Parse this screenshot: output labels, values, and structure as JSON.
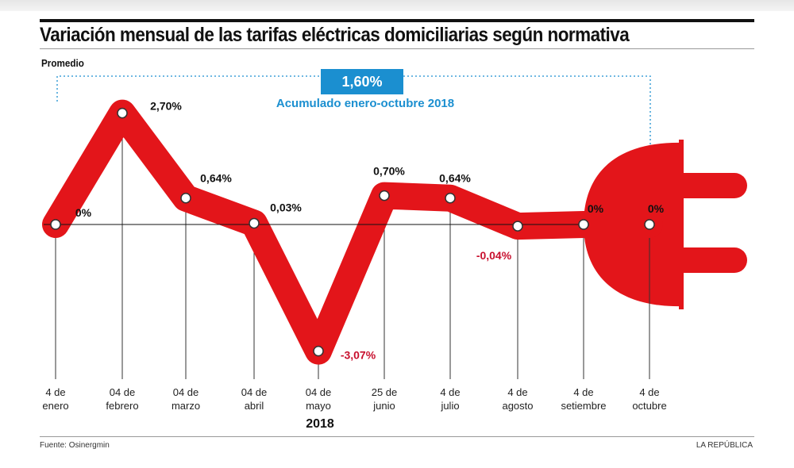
{
  "header": {
    "title": "Variación mensual de las tarifas eléctricas domiciliarias según normativa",
    "subtitle": "Promedio"
  },
  "total": {
    "value": "1,60%",
    "label": "Acumulado enero-octubre 2018"
  },
  "footer": {
    "source": "Fuente: Osinergmin",
    "brand": "LA REPÚBLICA"
  },
  "colors": {
    "line": "#e3151a",
    "negative_label": "#c8102e",
    "accent": "#1b8fd0"
  },
  "chart_data": {
    "type": "line",
    "title": "Variación mensual de las tarifas eléctricas domiciliarias según normativa",
    "ylabel": "Promedio",
    "xlabel": "2018",
    "categories": [
      [
        "4 de",
        "enero"
      ],
      [
        "04 de",
        "febrero"
      ],
      [
        "04 de",
        "marzo"
      ],
      [
        "04 de",
        "abril"
      ],
      [
        "04 de",
        "mayo"
      ],
      [
        "25 de",
        "junio"
      ],
      [
        "4 de",
        "julio"
      ],
      [
        "4 de",
        "agosto"
      ],
      [
        "4 de",
        "setiembre"
      ],
      [
        "4 de",
        "octubre"
      ]
    ],
    "values": [
      0,
      2.7,
      0.64,
      0.03,
      -3.07,
      0.7,
      0.64,
      -0.04,
      0,
      0
    ],
    "data_labels": [
      "0%",
      "2,70%",
      "0,64%",
      "0,03%",
      "-3,07%",
      "0,70%",
      "0,64%",
      "-0,04%",
      "0%",
      "0%"
    ],
    "grid": false,
    "legend": "none"
  }
}
